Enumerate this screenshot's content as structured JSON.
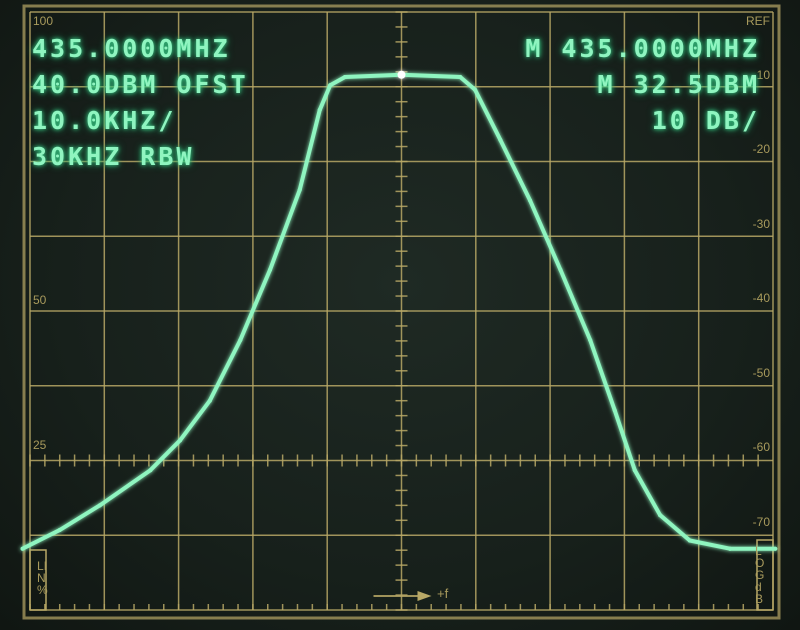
{
  "readout": {
    "center_freq": "435.0000MHZ",
    "ref_offset": "40.0DBM OFST",
    "span_per_div": "10.0KHZ/",
    "rbw": "30KHZ RBW",
    "marker_freq": "M 435.0000MHZ",
    "marker_level": "M 32.5DBM",
    "scale": "10 DB/"
  },
  "graticule": {
    "left_labels": [
      "100",
      "50",
      "25"
    ],
    "right_labels": [
      "REF",
      "10",
      "-20",
      "-30",
      "-40",
      "-50",
      "-60",
      "-70"
    ],
    "lin_label": "LIN %",
    "log_label": "LOG dB",
    "freq_arrow_label": "+f",
    "color": "#b8a866"
  },
  "chart_data": {
    "type": "line",
    "xlabel": "+f",
    "ylabel": "",
    "x_unit_per_div": "10.0KHZ/",
    "y_unit_per_div": "10 DB/",
    "xlim": [
      -50,
      50
    ],
    "ylim": [
      -80,
      0
    ],
    "grid": true,
    "trace_color": "#8ff5c0",
    "series": [
      {
        "x": [
          -51,
          -46,
          -40.6,
          -33.8,
          -29.8,
          -25.8,
          -21.7,
          -17.7,
          -13.7,
          -11,
          -9.6,
          -7.6,
          0,
          7.9,
          9.9,
          13.3,
          17.3,
          21.4,
          25.4,
          28.7,
          31.4,
          34.8,
          38.8,
          44.2,
          50.3
        ],
        "y": [
          -71.8,
          -69.3,
          -66,
          -61.3,
          -57.3,
          -52,
          -43.9,
          -34.5,
          -23.8,
          -13.1,
          -9.8,
          -8.7,
          -8.4,
          -8.7,
          -10.4,
          -17.1,
          -25.2,
          -34.5,
          -43.9,
          -53.3,
          -61.3,
          -67.3,
          -70.7,
          -71.8,
          -71.8
        ]
      }
    ]
  }
}
